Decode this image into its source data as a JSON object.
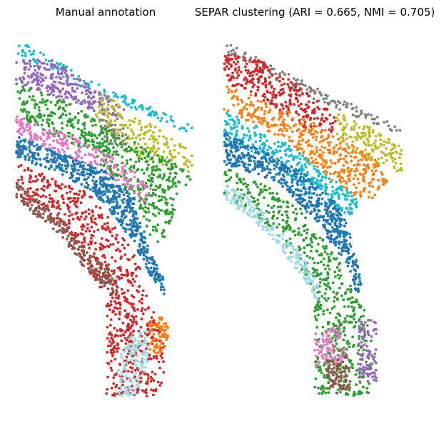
{
  "chart_data": [
    {
      "type": "scatter",
      "title": "Manual annotation",
      "xlabel": "",
      "ylabel": "",
      "axes_visible": false,
      "regions": [
        {
          "name": "cyan band",
          "color": "#17becf",
          "polygon": [
            [
              0.0,
              0.0
            ],
            [
              0.48,
              0.13
            ],
            [
              1.0,
              0.25
            ],
            [
              0.98,
              0.27
            ],
            [
              0.46,
              0.16
            ],
            [
              0.0,
              0.04
            ]
          ],
          "n": 130
        },
        {
          "name": "purple band",
          "color": "#9467bd",
          "polygon": [
            [
              0.0,
              0.05
            ],
            [
              0.2,
              0.06
            ],
            [
              0.45,
              0.14
            ],
            [
              0.6,
              0.19
            ],
            [
              0.58,
              0.23
            ],
            [
              0.38,
              0.19
            ],
            [
              0.2,
              0.16
            ],
            [
              0.0,
              0.12
            ]
          ],
          "n": 260
        },
        {
          "name": "olive patch",
          "color": "#bcbd22",
          "polygon": [
            [
              0.44,
              0.15
            ],
            [
              0.56,
              0.17
            ],
            [
              0.58,
              0.22
            ],
            [
              0.7,
              0.22
            ],
            [
              0.98,
              0.32
            ],
            [
              0.98,
              0.38
            ],
            [
              0.7,
              0.34
            ],
            [
              0.56,
              0.28
            ],
            [
              0.44,
              0.22
            ]
          ],
          "n": 180
        },
        {
          "name": "gray patch",
          "color": "#7f7f7f",
          "polygon": [
            [
              0.46,
              0.22
            ],
            [
              0.6,
              0.25
            ],
            [
              0.62,
              0.3
            ],
            [
              0.48,
              0.29
            ]
          ],
          "n": 40
        },
        {
          "name": "green band",
          "color": "#2ca02c",
          "polygon": [
            [
              0.0,
              0.12
            ],
            [
              0.3,
              0.18
            ],
            [
              0.55,
              0.26
            ],
            [
              0.85,
              0.34
            ],
            [
              0.98,
              0.38
            ],
            [
              0.9,
              0.44
            ],
            [
              0.83,
              0.55
            ],
            [
              0.8,
              0.58
            ],
            [
              0.74,
              0.55
            ],
            [
              0.66,
              0.45
            ],
            [
              0.55,
              0.4
            ],
            [
              0.4,
              0.31
            ],
            [
              0.2,
              0.27
            ],
            [
              0.0,
              0.21
            ]
          ],
          "n": 560
        },
        {
          "name": "pink band",
          "color": "#e377c2",
          "polygon": [
            [
              0.0,
              0.21
            ],
            [
              0.3,
              0.27
            ],
            [
              0.55,
              0.33
            ],
            [
              0.75,
              0.41
            ],
            [
              0.72,
              0.46
            ],
            [
              0.5,
              0.38
            ],
            [
              0.25,
              0.32
            ],
            [
              0.0,
              0.27
            ]
          ],
          "n": 230
        },
        {
          "name": "blue band",
          "color": "#1f77b4",
          "polygon": [
            [
              0.0,
              0.27
            ],
            [
              0.25,
              0.32
            ],
            [
              0.5,
              0.37
            ],
            [
              0.65,
              0.44
            ],
            [
              0.7,
              0.52
            ],
            [
              0.74,
              0.6
            ],
            [
              0.82,
              0.66
            ],
            [
              0.82,
              0.72
            ],
            [
              0.74,
              0.66
            ],
            [
              0.66,
              0.58
            ],
            [
              0.58,
              0.52
            ],
            [
              0.5,
              0.47
            ],
            [
              0.4,
              0.42
            ],
            [
              0.25,
              0.38
            ],
            [
              0.0,
              0.33
            ]
          ],
          "n": 620
        },
        {
          "name": "red wedge",
          "color": "#d62728",
          "polygon": [
            [
              0.0,
              0.34
            ],
            [
              0.2,
              0.39
            ],
            [
              0.4,
              0.43
            ],
            [
              0.58,
              0.54
            ],
            [
              0.68,
              0.62
            ],
            [
              0.7,
              0.7
            ],
            [
              0.78,
              0.76
            ],
            [
              0.82,
              0.84
            ],
            [
              0.82,
              0.96
            ],
            [
              0.76,
              1.0
            ],
            [
              0.5,
              1.0
            ],
            [
              0.5,
              0.72
            ],
            [
              0.4,
              0.65
            ],
            [
              0.3,
              0.55
            ],
            [
              0.15,
              0.48
            ],
            [
              0.0,
              0.44
            ]
          ],
          "n": 720
        },
        {
          "name": "brown band",
          "color": "#8c564b",
          "polygon": [
            [
              0.0,
              0.4
            ],
            [
              0.12,
              0.45
            ],
            [
              0.25,
              0.5
            ],
            [
              0.36,
              0.57
            ],
            [
              0.46,
              0.62
            ],
            [
              0.56,
              0.66
            ],
            [
              0.56,
              0.72
            ],
            [
              0.46,
              0.68
            ],
            [
              0.36,
              0.63
            ],
            [
              0.25,
              0.55
            ],
            [
              0.12,
              0.5
            ],
            [
              0.0,
              0.45
            ]
          ],
          "n": 230
        },
        {
          "name": "orange patch",
          "color": "#ff7f0e",
          "polygon": [
            [
              0.74,
              0.78
            ],
            [
              0.84,
              0.78
            ],
            [
              0.84,
              0.88
            ],
            [
              0.74,
              0.88
            ]
          ],
          "n": 70
        },
        {
          "name": "light blue loop",
          "color": "#9edae5",
          "polygon": [
            [
              0.6,
              0.85
            ],
            [
              0.72,
              0.8
            ],
            [
              0.74,
              0.9
            ],
            [
              0.66,
              1.0
            ],
            [
              0.56,
              1.0
            ],
            [
              0.56,
              0.92
            ]
          ],
          "n": 130
        }
      ]
    },
    {
      "type": "scatter",
      "title": "SEPAR clustering (ARI = 0.665, NMI = 0.705)",
      "xlabel": "",
      "ylabel": "",
      "axes_visible": false,
      "regions": [
        {
          "name": "gray band",
          "color": "#7f7f7f",
          "polygon": [
            [
              0.0,
              0.0
            ],
            [
              0.48,
              0.13
            ],
            [
              1.0,
              0.25
            ],
            [
              0.98,
              0.27
            ],
            [
              0.46,
              0.16
            ],
            [
              0.0,
              0.04
            ]
          ],
          "n": 130
        },
        {
          "name": "red band",
          "color": "#d62728",
          "polygon": [
            [
              0.0,
              0.04
            ],
            [
              0.2,
              0.06
            ],
            [
              0.45,
              0.14
            ],
            [
              0.62,
              0.22
            ],
            [
              0.6,
              0.26
            ],
            [
              0.45,
              0.25
            ],
            [
              0.2,
              0.17
            ],
            [
              0.0,
              0.12
            ]
          ],
          "n": 300
        },
        {
          "name": "olive patch",
          "color": "#bcbd22",
          "polygon": [
            [
              0.62,
              0.2
            ],
            [
              0.78,
              0.24
            ],
            [
              0.98,
              0.3
            ],
            [
              0.98,
              0.38
            ],
            [
              0.8,
              0.34
            ],
            [
              0.62,
              0.28
            ]
          ],
          "n": 150
        },
        {
          "name": "orange band",
          "color": "#ff7f0e",
          "polygon": [
            [
              0.0,
              0.12
            ],
            [
              0.25,
              0.18
            ],
            [
              0.45,
              0.22
            ],
            [
              0.62,
              0.27
            ],
            [
              0.85,
              0.34
            ],
            [
              0.9,
              0.4
            ],
            [
              0.8,
              0.46
            ],
            [
              0.72,
              0.44
            ],
            [
              0.55,
              0.38
            ],
            [
              0.4,
              0.31
            ],
            [
              0.2,
              0.25
            ],
            [
              0.0,
              0.2
            ]
          ],
          "n": 420
        },
        {
          "name": "cyan band",
          "color": "#17becf",
          "polygon": [
            [
              0.0,
              0.2
            ],
            [
              0.2,
              0.25
            ],
            [
              0.4,
              0.31
            ],
            [
              0.6,
              0.39
            ],
            [
              0.75,
              0.45
            ],
            [
              0.7,
              0.5
            ],
            [
              0.55,
              0.46
            ],
            [
              0.4,
              0.4
            ],
            [
              0.2,
              0.33
            ],
            [
              0.0,
              0.28
            ]
          ],
          "n": 300
        },
        {
          "name": "blue band",
          "color": "#1f77b4",
          "polygon": [
            [
              0.0,
              0.26
            ],
            [
              0.25,
              0.32
            ],
            [
              0.45,
              0.38
            ],
            [
              0.62,
              0.46
            ],
            [
              0.68,
              0.52
            ],
            [
              0.72,
              0.6
            ],
            [
              0.76,
              0.68
            ],
            [
              0.74,
              0.72
            ],
            [
              0.66,
              0.62
            ],
            [
              0.56,
              0.55
            ],
            [
              0.45,
              0.48
            ],
            [
              0.3,
              0.4
            ],
            [
              0.0,
              0.35
            ]
          ],
          "n": 600
        },
        {
          "name": "green wedge",
          "color": "#2ca02c",
          "polygon": [
            [
              0.0,
              0.35
            ],
            [
              0.2,
              0.4
            ],
            [
              0.4,
              0.46
            ],
            [
              0.55,
              0.56
            ],
            [
              0.66,
              0.64
            ],
            [
              0.72,
              0.7
            ],
            [
              0.8,
              0.74
            ],
            [
              0.82,
              0.9
            ],
            [
              0.8,
              1.0
            ],
            [
              0.5,
              1.0
            ],
            [
              0.5,
              0.72
            ],
            [
              0.4,
              0.62
            ],
            [
              0.3,
              0.55
            ],
            [
              0.15,
              0.48
            ],
            [
              0.0,
              0.44
            ]
          ],
          "n": 600
        },
        {
          "name": "light blue band",
          "color": "#9edae5",
          "polygon": [
            [
              0.0,
              0.4
            ],
            [
              0.15,
              0.45
            ],
            [
              0.3,
              0.53
            ],
            [
              0.45,
              0.62
            ],
            [
              0.52,
              0.68
            ],
            [
              0.52,
              0.74
            ],
            [
              0.45,
              0.68
            ],
            [
              0.3,
              0.58
            ],
            [
              0.15,
              0.5
            ],
            [
              0.0,
              0.45
            ]
          ],
          "n": 200
        },
        {
          "name": "pink patch",
          "color": "#e377c2",
          "polygon": [
            [
              0.5,
              0.82
            ],
            [
              0.66,
              0.8
            ],
            [
              0.68,
              0.9
            ],
            [
              0.5,
              0.92
            ]
          ],
          "n": 90
        },
        {
          "name": "purple patch",
          "color": "#9467bd",
          "polygon": [
            [
              0.74,
              0.78
            ],
            [
              0.84,
              0.78
            ],
            [
              0.84,
              0.96
            ],
            [
              0.74,
              0.96
            ]
          ],
          "n": 90
        },
        {
          "name": "brown loop",
          "color": "#8c564b",
          "polygon": [
            [
              0.56,
              0.9
            ],
            [
              0.68,
              0.88
            ],
            [
              0.7,
              0.98
            ],
            [
              0.58,
              1.0
            ]
          ],
          "n": 90
        }
      ]
    }
  ]
}
